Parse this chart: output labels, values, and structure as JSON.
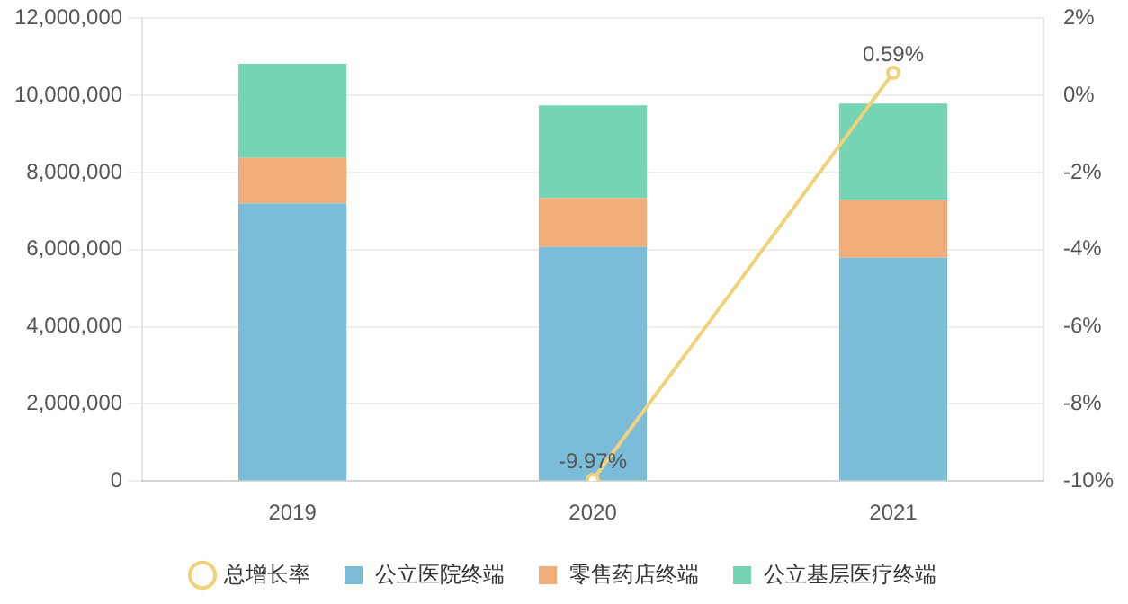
{
  "chart_data": {
    "type": "bar",
    "stacked": true,
    "categories": [
      "2019",
      "2020",
      "2021"
    ],
    "series": [
      {
        "name": "公立医院终端",
        "color": "#7bbcd9",
        "values": [
          7200000,
          6070000,
          5790000
        ]
      },
      {
        "name": "零售药店终端",
        "color": "#f0ad78",
        "values": [
          1180000,
          1270000,
          1500000
        ]
      },
      {
        "name": "公立基层医疗终端",
        "color": "#74d4b4",
        "values": [
          2440000,
          2400000,
          2500000
        ]
      },
      {
        "name": "总增长率",
        "type": "line",
        "axis": "y2",
        "color": "#f0d27a",
        "values": [
          null,
          -9.97,
          0.59
        ],
        "value_labels": [
          null,
          "-9.97%",
          "0.59%"
        ]
      }
    ],
    "ylim": [
      0,
      12000000
    ],
    "yticks": [
      {
        "value": 0,
        "label": "0"
      },
      {
        "value": 2000000,
        "label": "2,000,000"
      },
      {
        "value": 4000000,
        "label": "4,000,000"
      },
      {
        "value": 6000000,
        "label": "6,000,000"
      },
      {
        "value": 8000000,
        "label": "8,000,000"
      },
      {
        "value": 10000000,
        "label": "10,000,000"
      },
      {
        "value": 12000000,
        "label": "12,000,000"
      }
    ],
    "y2lim": [
      -10,
      2
    ],
    "y2ticks": [
      {
        "value": -10,
        "label": "-10%"
      },
      {
        "value": -8,
        "label": "-8%"
      },
      {
        "value": -6,
        "label": "-6%"
      },
      {
        "value": -4,
        "label": "-4%"
      },
      {
        "value": -2,
        "label": "-2%"
      },
      {
        "value": 0,
        "label": "0%"
      },
      {
        "value": 2,
        "label": "2%"
      }
    ],
    "grid": "y",
    "legend": "bottom",
    "marker": "circle",
    "line_style": "solid"
  }
}
